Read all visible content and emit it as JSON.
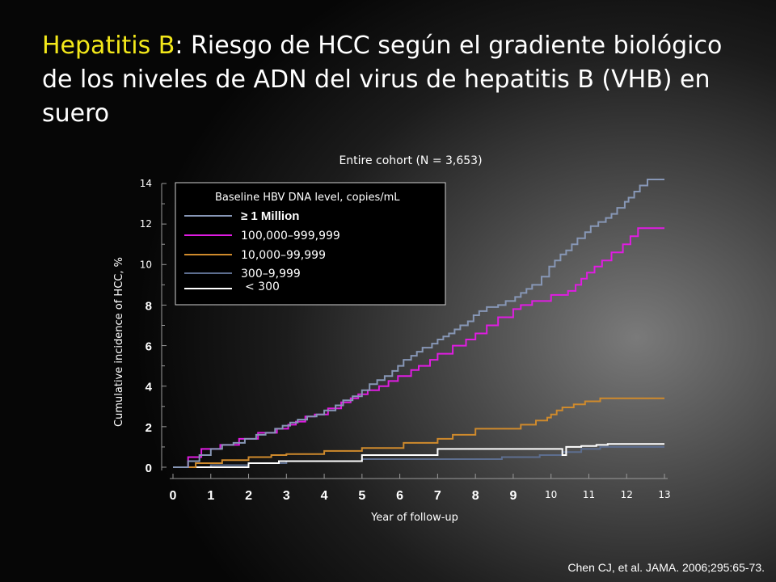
{
  "slide": {
    "title_highlight": "Hepatitis B",
    "title_rest": ": Riesgo de HCC según el gradiente biológico de los niveles de ADN del virus de hepatitis B (VHB) en suero",
    "citation": "Chen CJ, et al. JAMA. 2006;295:65-73."
  },
  "chart_data": {
    "type": "line",
    "step": true,
    "title": "Entire cohort (N = 3,653)",
    "xlabel": "Year of follow-up",
    "ylabel": "Cumulative incidence of HCC, %",
    "xlim": [
      0,
      13
    ],
    "ylim": [
      0,
      14
    ],
    "xticks": [
      0,
      1,
      2,
      3,
      4,
      5,
      6,
      7,
      8,
      9,
      10,
      11,
      12,
      13
    ],
    "yticks": [
      0,
      2,
      4,
      6,
      8,
      10,
      12,
      14
    ],
    "legend": {
      "title": "Baseline HBV DNA level, copies/mL",
      "placement": "top-left"
    },
    "series": [
      {
        "name": "≥ 1 Million",
        "color": "#8797b6",
        "x": [
          0,
          0.4,
          0.7,
          1.0,
          1.3,
          1.6,
          1.9,
          2.2,
          2.45,
          2.7,
          2.9,
          3.1,
          3.3,
          3.55,
          3.8,
          4.0,
          4.3,
          4.5,
          4.75,
          5.0,
          5.2,
          5.4,
          5.6,
          5.8,
          5.95,
          6.1,
          6.3,
          6.45,
          6.6,
          6.85,
          7.0,
          7.15,
          7.3,
          7.45,
          7.6,
          7.8,
          7.95,
          8.1,
          8.3,
          8.6,
          8.8,
          9.05,
          9.2,
          9.35,
          9.5,
          9.75,
          9.95,
          10.1,
          10.25,
          10.4,
          10.55,
          10.7,
          10.9,
          11.05,
          11.25,
          11.45,
          11.6,
          11.75,
          11.95,
          12.05,
          12.2,
          12.35,
          12.55,
          13.0
        ],
        "y": [
          0,
          0.3,
          0.6,
          0.9,
          1.1,
          1.2,
          1.4,
          1.6,
          1.7,
          1.9,
          2.05,
          2.2,
          2.35,
          2.5,
          2.6,
          2.8,
          3.05,
          3.3,
          3.5,
          3.8,
          4.1,
          4.3,
          4.5,
          4.75,
          5.0,
          5.3,
          5.5,
          5.7,
          5.9,
          6.1,
          6.3,
          6.45,
          6.6,
          6.8,
          7.0,
          7.2,
          7.5,
          7.7,
          7.9,
          8.0,
          8.2,
          8.4,
          8.6,
          8.8,
          9.0,
          9.4,
          9.9,
          10.2,
          10.5,
          10.7,
          11.0,
          11.3,
          11.6,
          11.9,
          12.1,
          12.3,
          12.5,
          12.8,
          13.1,
          13.3,
          13.6,
          13.9,
          14.2,
          14.2
        ]
      },
      {
        "name": "100,000–999,999",
        "color": "#e01ce2",
        "x": [
          0,
          0.4,
          0.75,
          1.25,
          1.75,
          2.25,
          2.75,
          3.05,
          3.25,
          3.5,
          3.75,
          4.1,
          4.45,
          4.7,
          4.9,
          5.15,
          5.45,
          5.7,
          5.95,
          6.3,
          6.5,
          6.8,
          7.0,
          7.4,
          7.75,
          8.0,
          8.3,
          8.6,
          9.0,
          9.2,
          9.5,
          10.0,
          10.45,
          10.65,
          10.8,
          10.95,
          11.15,
          11.35,
          11.6,
          11.9,
          12.1,
          12.3,
          13.0
        ],
        "y": [
          0,
          0.5,
          0.9,
          1.1,
          1.4,
          1.7,
          1.9,
          2.1,
          2.25,
          2.5,
          2.6,
          2.9,
          3.2,
          3.4,
          3.6,
          3.8,
          4.0,
          4.25,
          4.5,
          4.8,
          5.0,
          5.3,
          5.6,
          6.0,
          6.3,
          6.6,
          7.0,
          7.4,
          7.8,
          8.0,
          8.2,
          8.5,
          8.7,
          9.0,
          9.3,
          9.6,
          9.9,
          10.2,
          10.6,
          11.0,
          11.4,
          11.8,
          11.8
        ]
      },
      {
        "name": "10,000–99,999",
        "color": "#cf8a2c",
        "x": [
          0,
          0.6,
          1.3,
          2.0,
          2.6,
          3.0,
          4.0,
          5.0,
          6.1,
          7.0,
          7.4,
          8.0,
          9.2,
          9.6,
          9.9,
          10.0,
          10.15,
          10.3,
          10.6,
          10.9,
          11.3,
          13.0
        ],
        "y": [
          0,
          0.2,
          0.35,
          0.5,
          0.6,
          0.65,
          0.8,
          0.95,
          1.2,
          1.4,
          1.6,
          1.9,
          2.1,
          2.3,
          2.45,
          2.6,
          2.8,
          2.95,
          3.1,
          3.25,
          3.4,
          3.4
        ]
      },
      {
        "name": "300–9,999",
        "color": "#5d6e8f",
        "x": [
          0,
          1.0,
          2.0,
          3.0,
          5.0,
          8.7,
          9.7,
          10.3,
          10.8,
          11.3,
          13.0
        ],
        "y": [
          0,
          0.1,
          0.2,
          0.3,
          0.4,
          0.5,
          0.6,
          0.75,
          0.9,
          1.0,
          1.0
        ]
      },
      {
        "name": "< 300",
        "color": "#ffffff",
        "x": [
          0,
          2.0,
          2.8,
          5.0,
          7.0,
          10.1,
          10.3,
          10.4,
          10.8,
          11.2,
          11.5,
          13.0
        ],
        "y": [
          0,
          0.2,
          0.3,
          0.6,
          0.9,
          0.9,
          0.6,
          1.0,
          1.05,
          1.1,
          1.15,
          1.15
        ]
      }
    ]
  }
}
